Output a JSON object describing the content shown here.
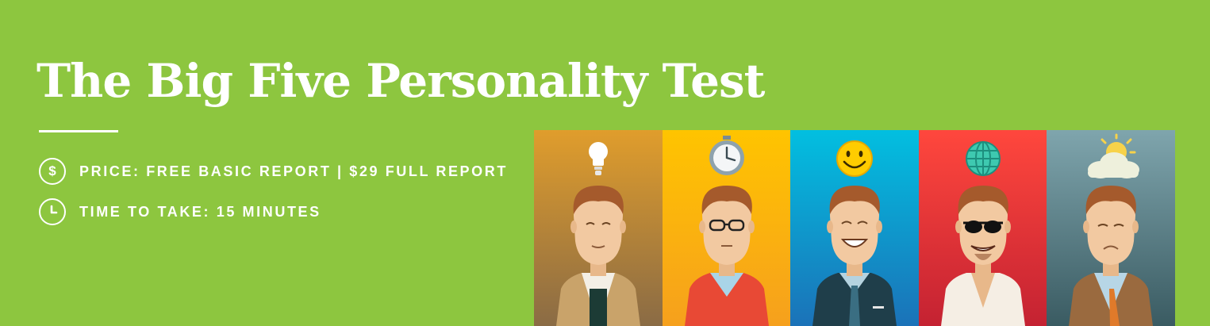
{
  "hero": {
    "title": "The Big Five Personality Test",
    "price_icon_glyph": "$",
    "price_text": "PRICE: FREE BASIC REPORT | $29 FULL REPORT",
    "time_text": "TIME TO TAKE: 15 MINUTES",
    "background_color": "#8dc63f"
  },
  "illustration": {
    "panels": [
      {
        "icon": "lightbulb-icon",
        "color": "#c98a2e"
      },
      {
        "icon": "stopwatch-icon",
        "color": "#ffb90a"
      },
      {
        "icon": "smiley-icon",
        "color": "#0aa4d6"
      },
      {
        "icon": "globe-icon",
        "color": "#e8333a"
      },
      {
        "icon": "sun-cloud-icon",
        "color": "#5e8088"
      }
    ]
  }
}
